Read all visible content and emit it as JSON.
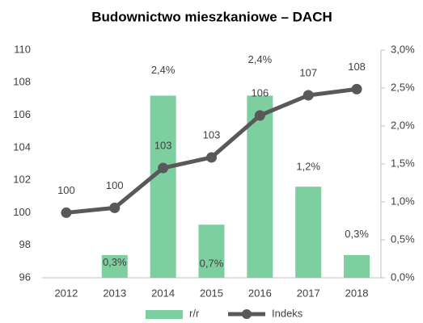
{
  "chart_data": {
    "type": "bar_line",
    "title": "Budownictwo mieszkaniowe – DACH",
    "categories": [
      "2012",
      "2013",
      "2014",
      "2015",
      "2016",
      "2017",
      "2018"
    ],
    "series": [
      {
        "name": "r/r",
        "type": "bar",
        "axis": "y2",
        "color": "#7dcf9f",
        "values": [
          null,
          0.3,
          2.4,
          0.7,
          2.4,
          1.2,
          0.3
        ],
        "value_labels": [
          null,
          "0,3%",
          "2,4%",
          "0,7%",
          "2,4%",
          "1,2%",
          "0,3%"
        ]
      },
      {
        "name": "Indeks",
        "type": "line",
        "axis": "y",
        "color": "#595959",
        "values": [
          100.0,
          100.3,
          102.75,
          103.4,
          105.98,
          107.22,
          107.6
        ],
        "value_labels": [
          "100",
          "100",
          "103",
          "103",
          "106",
          "107",
          "108"
        ]
      }
    ],
    "ylim": [
      96,
      110
    ],
    "yticks": [
      96,
      98,
      100,
      102,
      104,
      106,
      108,
      110
    ],
    "y2lim": [
      0,
      3
    ],
    "y2ticks": [
      {
        "value": 0,
        "label": "0,0%"
      },
      {
        "value": 0.5,
        "label": "0,5%"
      },
      {
        "value": 1,
        "label": "1,0%"
      },
      {
        "value": 1.5,
        "label": "1,5%"
      },
      {
        "value": 2,
        "label": "2,0%"
      },
      {
        "value": 2.5,
        "label": "2,5%"
      },
      {
        "value": 3,
        "label": "3,0%"
      }
    ],
    "legend": "bottom"
  }
}
